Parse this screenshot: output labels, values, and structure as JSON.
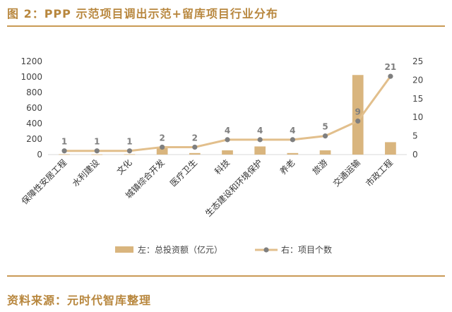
{
  "title": "图 2：PPP 示范项目调出示范+留库项目行业分布",
  "source": "资料来源：元时代智库整理",
  "chart_data": {
    "type": "bar",
    "categories": [
      "保障性安居工程",
      "水利建设",
      "文化",
      "城镇综合开发",
      "医疗卫生",
      "科技",
      "生态建设和环境保护",
      "养老",
      "旅游",
      "交通运输",
      "市政工程"
    ],
    "series": [
      {
        "name": "左：总投资额（亿元）",
        "type": "bar",
        "axis": "left",
        "values": [
          5,
          3,
          5,
          100,
          20,
          55,
          105,
          20,
          55,
          1025,
          160
        ],
        "color": "#d9b57e"
      },
      {
        "name": "右：项目个数",
        "type": "line",
        "axis": "right",
        "values": [
          1,
          1,
          1,
          2,
          2,
          4,
          4,
          4,
          5,
          9,
          21
        ],
        "color": "#e2bf8c",
        "marker_color": "#7f7f7f"
      }
    ],
    "y_left_ticks": [
      "0",
      "200",
      "400",
      "600",
      "800",
      "1000",
      "1200"
    ],
    "ylim_left": [
      0,
      1200
    ],
    "y_right_ticks": [
      "0",
      "5",
      "10",
      "15",
      "20",
      "25"
    ],
    "ylim_right": [
      0,
      25
    ],
    "grid": false,
    "legend_position": "bottom"
  }
}
